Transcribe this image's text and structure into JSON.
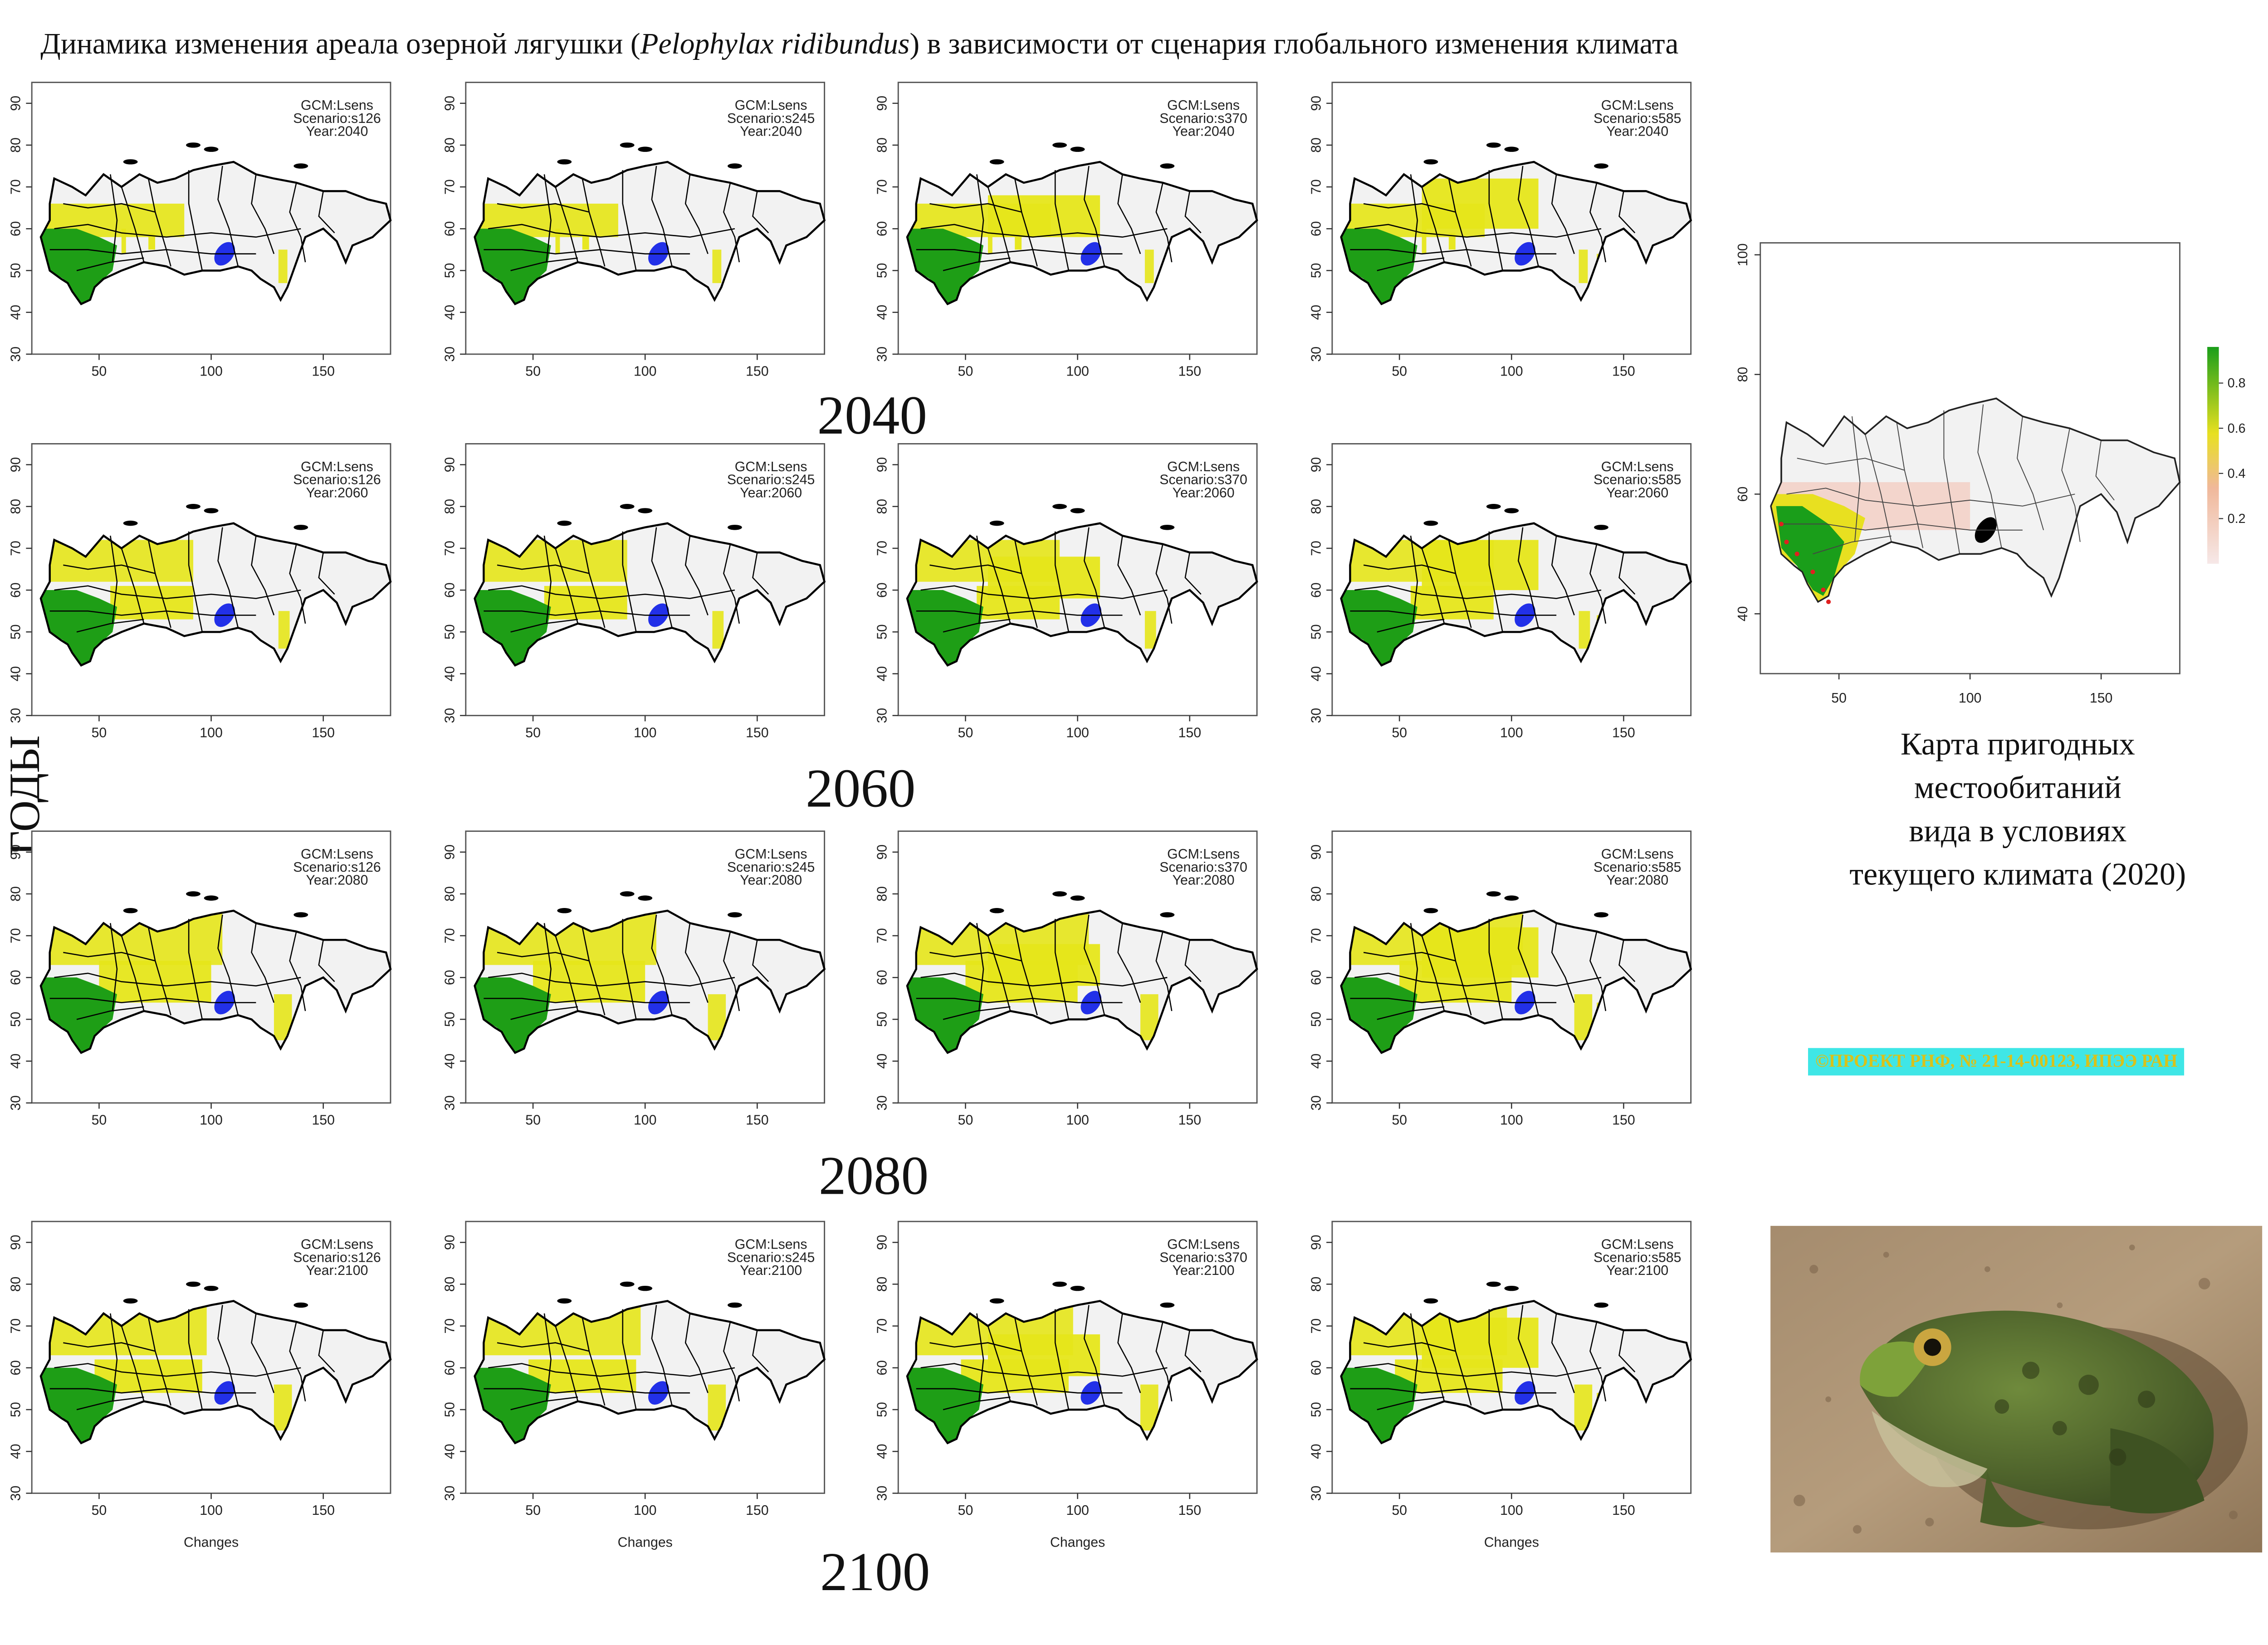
{
  "title": {
    "prefix": "Динамика изменения ареала озерной лягушки (",
    "species": "Pelophylax ridibundus",
    "suffix": ") в зависимости от сценария глобального изменения климата"
  },
  "side_label": "ГОДЫ",
  "gcm": "GCM:Lsens",
  "years": [
    "2040",
    "2060",
    "2080",
    "2100"
  ],
  "scenarios": [
    "s126",
    "s245",
    "s370",
    "s585"
  ],
  "panel_axes": {
    "x_ticks": [
      "50",
      "100",
      "150"
    ],
    "y_ticks": [
      "30",
      "40",
      "50",
      "60",
      "70",
      "80",
      "90"
    ],
    "x_label": "Changes"
  },
  "current_map": {
    "x_ticks": [
      "50",
      "100",
      "150"
    ],
    "y_ticks": [
      "40",
      "60",
      "80",
      "100"
    ],
    "legend_ticks": [
      "0.2",
      "0.4",
      "0.6",
      "0.8"
    ],
    "caption_lines": [
      "Карта пригодных",
      "местообитаний",
      "вида в условиях",
      "текущего климата (2020)"
    ]
  },
  "credit": "©ПРОЕКТ РНФ, № 21-14-00123, ИПЭЭ РАН",
  "colors": {
    "stable": "#1e9e16",
    "gain": "#e6e61a",
    "loss_lake": "#2230e8",
    "land": "#f2f2f2",
    "outline": "#000000",
    "legend_high": "#1a9e1a",
    "legend_mid": "#e8e020",
    "legend_low": "#f6e8e8",
    "credit_bg": "#3fe6e6",
    "credit_text": "#d8c21a"
  },
  "photo": {
    "icon": "frog-photo"
  }
}
